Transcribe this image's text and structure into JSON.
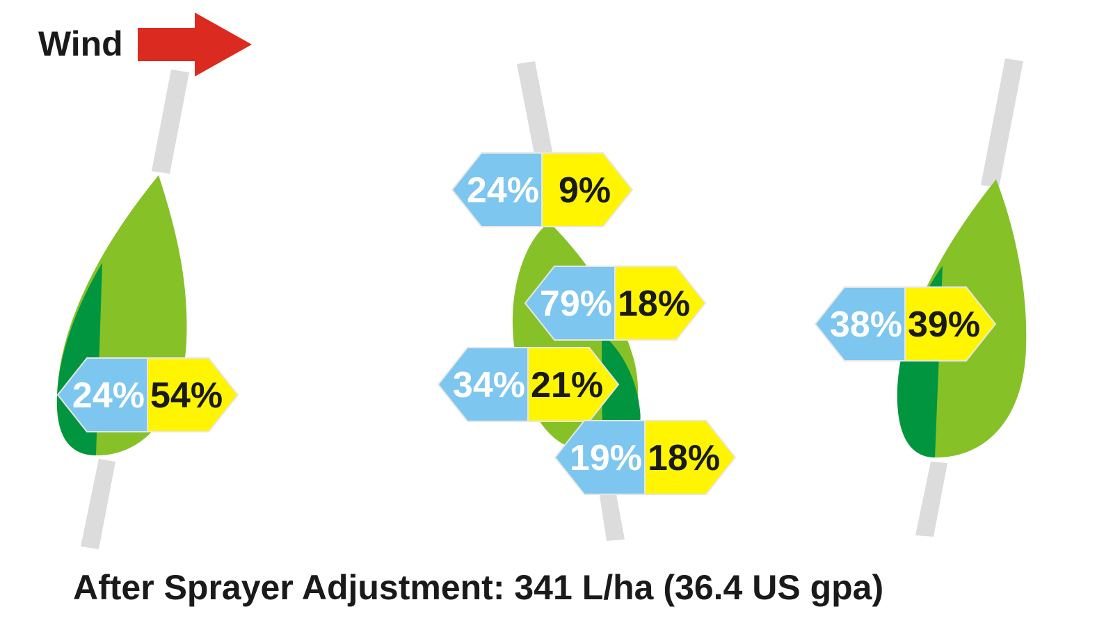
{
  "wind": {
    "label": "Wind",
    "arrow_color": "#db2a1f"
  },
  "title": "After Sprayer Adjustment: 341 L/ha (36.4 US gpa)",
  "colors": {
    "leaf_light": "#86c127",
    "leaf_dark": "#00953e",
    "stem": "#dcdcdc",
    "left_box": "#7dc6ef",
    "right_box": "#fff500",
    "left_text": "#ffffff",
    "right_text": "#1a1a1a"
  },
  "plants": [
    {
      "name": "left-plant",
      "labels": [
        {
          "left": "24%",
          "right": "54%"
        }
      ]
    },
    {
      "name": "middle-plant",
      "labels": [
        {
          "left": "24%",
          "right": "9%"
        },
        {
          "left": "79%",
          "right": "18%"
        },
        {
          "left": "34%",
          "right": "21%"
        },
        {
          "left": "19%",
          "right": "18%"
        }
      ]
    },
    {
      "name": "right-plant",
      "labels": [
        {
          "left": "38%",
          "right": "39%"
        }
      ]
    }
  ]
}
